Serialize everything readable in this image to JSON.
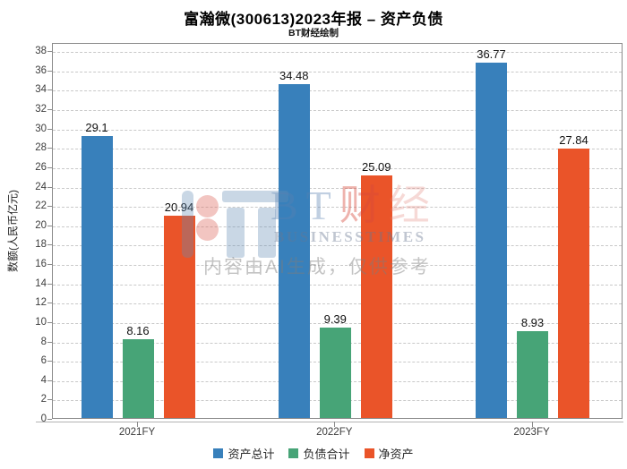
{
  "title": "富瀚微(300613)2023年报 – 资产负债",
  "subtitle": "BT财经绘制",
  "watermark": {
    "logo_bt": "BT",
    "logo_cai": "财",
    "logo_jing": "经",
    "brand_en": "BUSINESSTIMES",
    "disclaimer": "内容由AI生成，仅供参考"
  },
  "chart_data": {
    "type": "bar",
    "title": "富瀚微(300613)2023年报 – 资产负债",
    "subtitle": "BT财经绘制",
    "categories": [
      "2021FY",
      "2022FY",
      "2023FY"
    ],
    "series": [
      {
        "name": "资产总计",
        "color": "#3880bb",
        "values": [
          29.1,
          34.48,
          36.77
        ]
      },
      {
        "name": "负债合计",
        "color": "#47a477",
        "values": [
          8.16,
          9.39,
          8.93
        ]
      },
      {
        "name": "净资产",
        "color": "#ea5429",
        "values": [
          20.94,
          25.09,
          27.84
        ]
      }
    ],
    "xlabel": "",
    "ylabel": "数额(人民币亿元)",
    "ylim": [
      0,
      38.85
    ],
    "ytick_step": 2,
    "ytick_max": 38,
    "grid": true,
    "grid_style": "dashed-horizontal",
    "legend_position": "bottom",
    "bar_value_labels": true
  }
}
